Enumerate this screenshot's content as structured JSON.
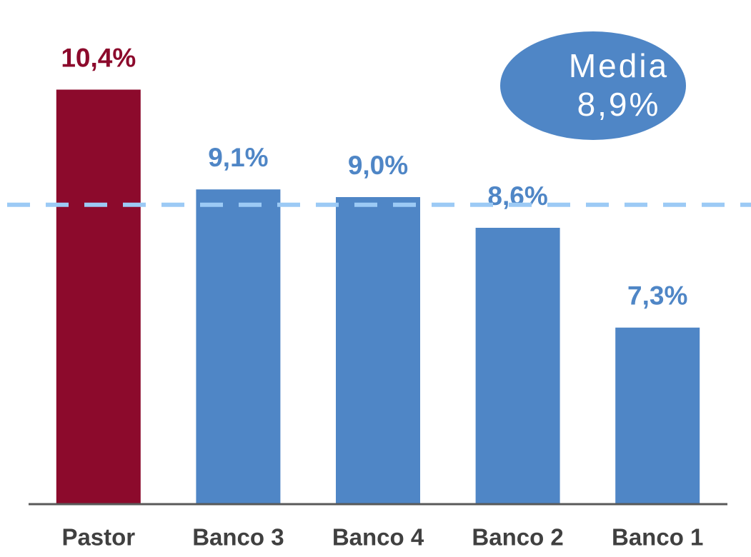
{
  "chart_data": {
    "type": "bar",
    "categories": [
      "Pastor",
      "Banco 3",
      "Banco 4",
      "Banco 2",
      "Banco 1"
    ],
    "values": [
      10.4,
      9.1,
      9.0,
      8.6,
      7.3
    ],
    "value_labels": [
      "10,4%",
      "9,1%",
      "9,0%",
      "8,6%",
      "7,3%"
    ],
    "colors": [
      "#8c0a2c",
      "#4f86c6",
      "#4f86c6",
      "#4f86c6",
      "#4f86c6"
    ],
    "ylim": [
      5,
      11
    ],
    "mean": {
      "name": "Media",
      "value": 8.9,
      "label": "8,9%",
      "color": "#9ccaf5",
      "bubble_color": "#4f86c6"
    }
  }
}
